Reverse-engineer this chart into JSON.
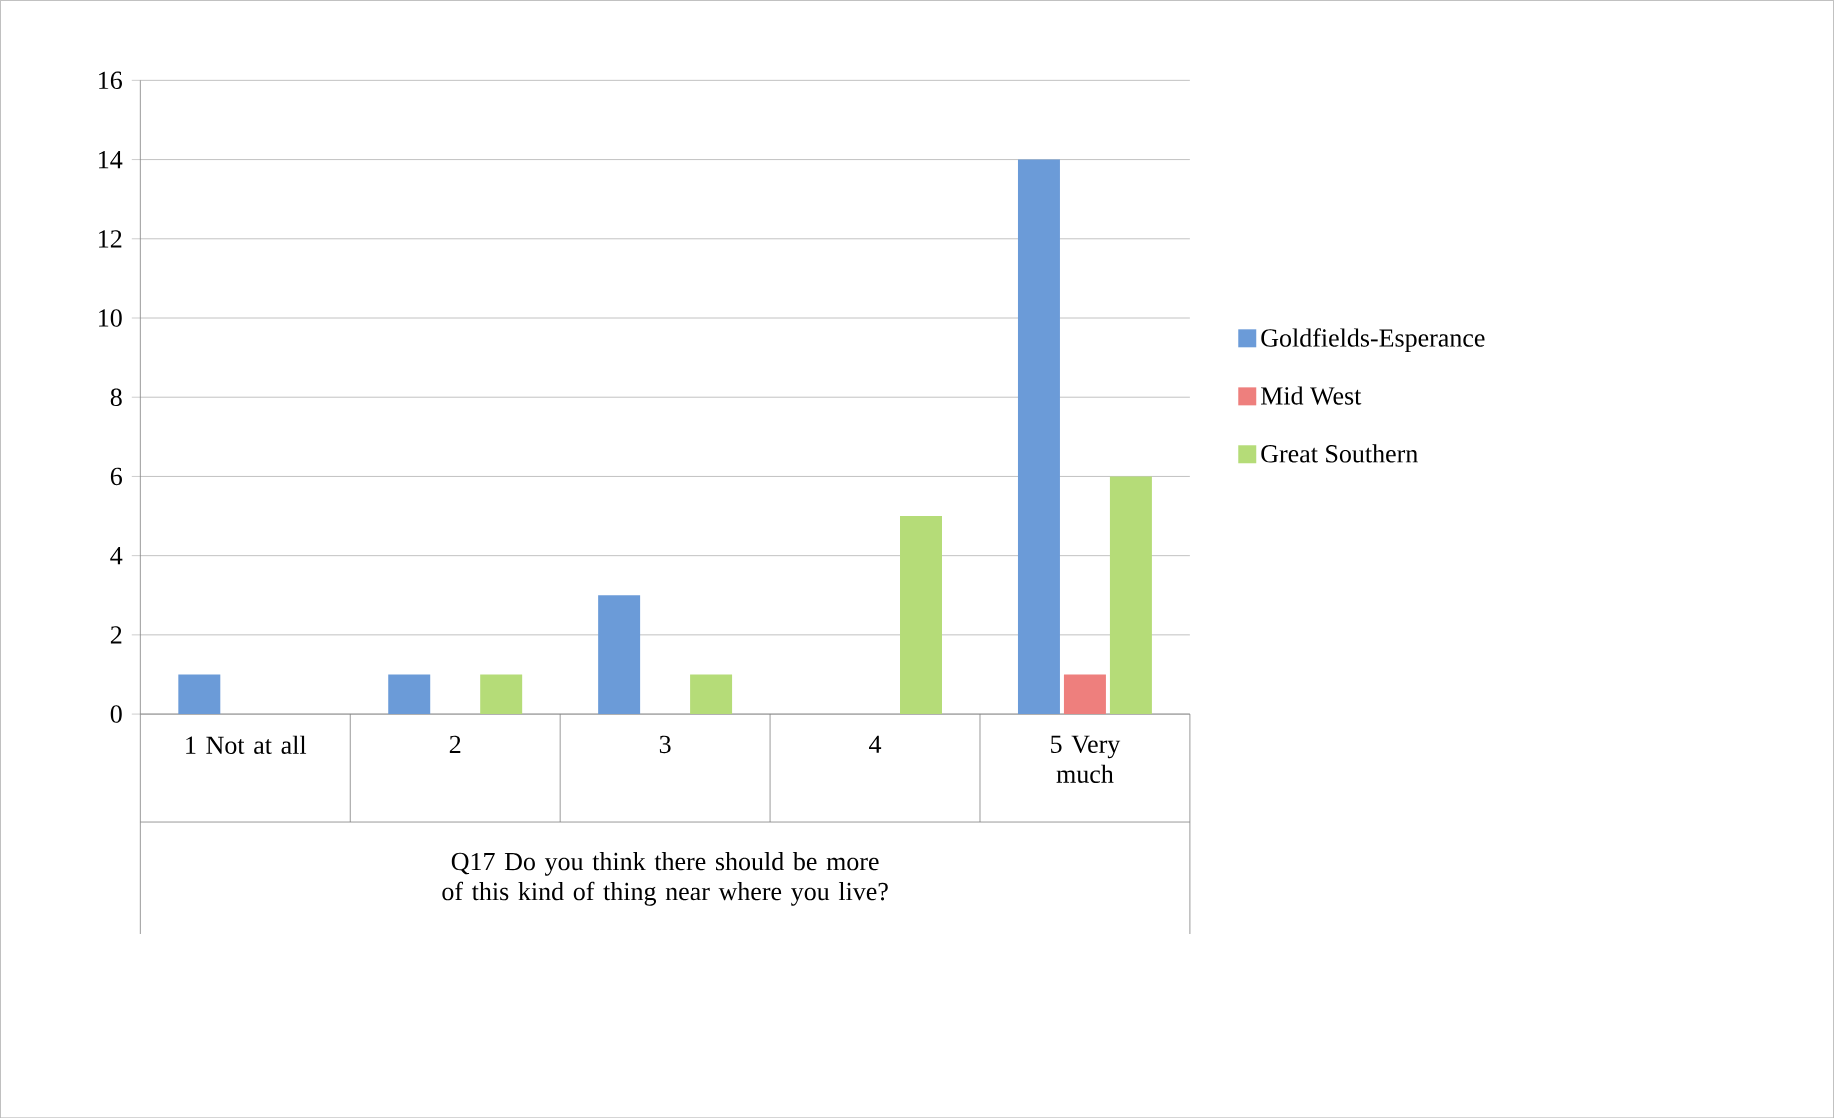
{
  "chart_data": {
    "type": "bar",
    "categories": [
      "1 Not at all",
      "2",
      "3",
      "4",
      "5 Very much"
    ],
    "xlabel": "Q17 Do you think there should be more of this kind of thing near where you live?",
    "series": [
      {
        "name": "Goldfields-Esperance",
        "color": "#6b9bd8",
        "values": [
          1,
          1,
          3,
          0,
          14
        ]
      },
      {
        "name": "Mid West",
        "color": "#ee7f7d",
        "values": [
          0,
          0,
          0,
          0,
          1
        ]
      },
      {
        "name": "Great Southern",
        "color": "#b5dc78",
        "values": [
          0,
          1,
          1,
          5,
          6
        ]
      }
    ],
    "ylim": [
      0,
      16
    ],
    "yticks": [
      0,
      2,
      4,
      6,
      8,
      10,
      12,
      14,
      16
    ],
    "grid": "y",
    "legend": "right"
  }
}
